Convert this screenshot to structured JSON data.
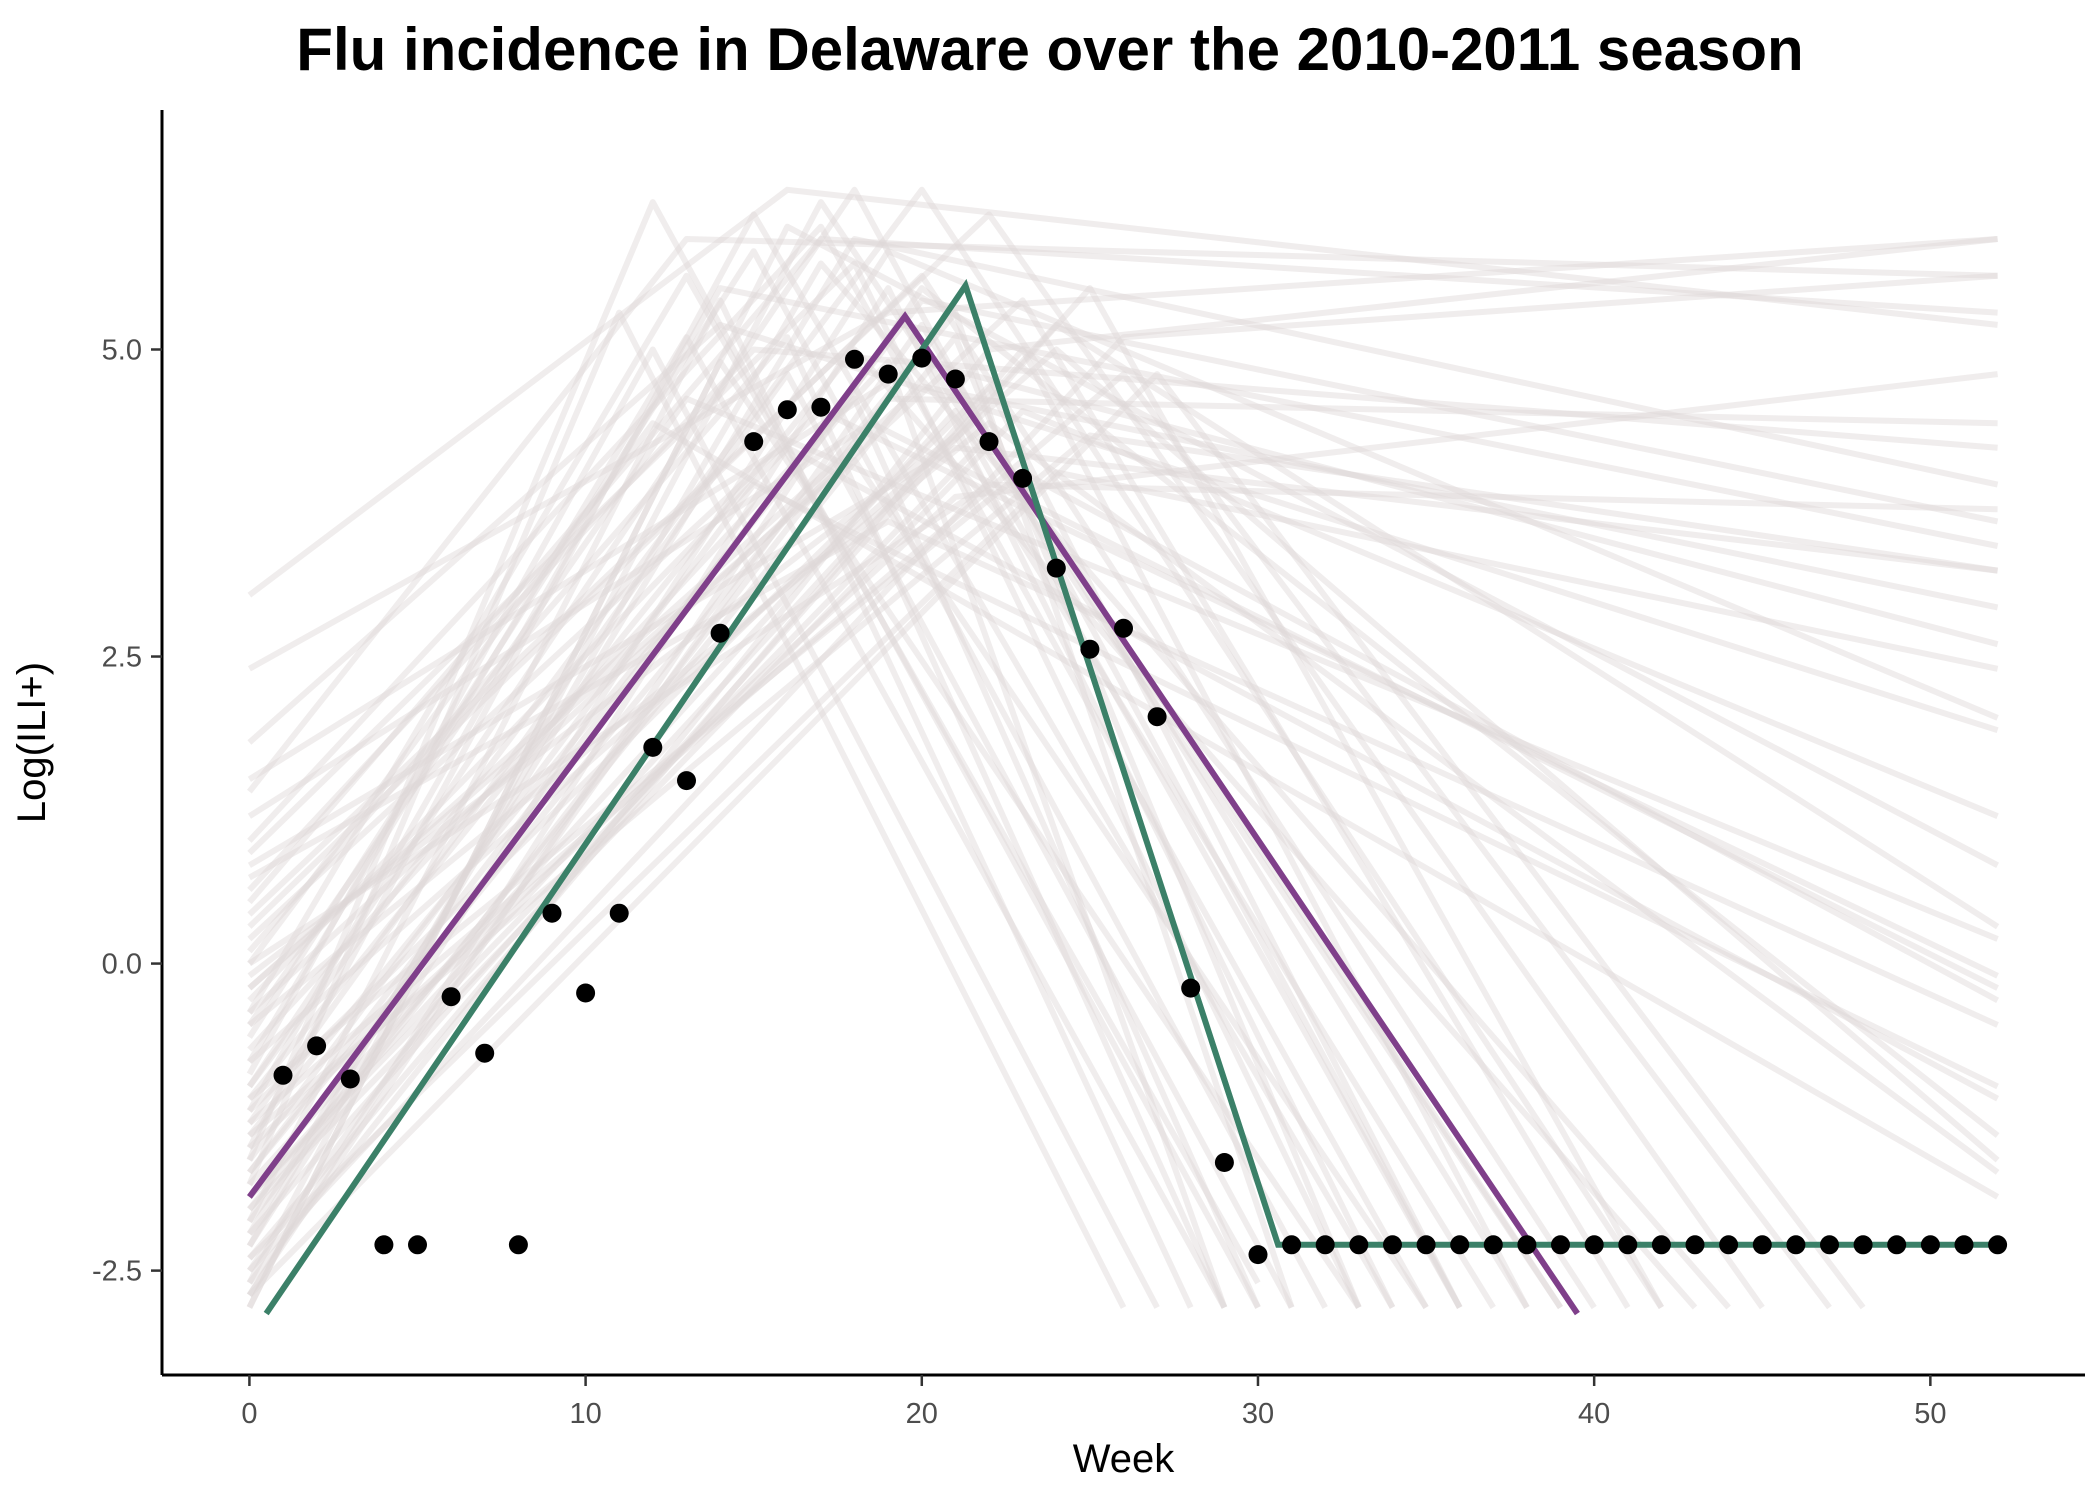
{
  "chart_data": {
    "type": "line",
    "title": "Flu incidence in Delaware over the 2010-2011 season",
    "xlabel": "Week",
    "ylabel": "Log(ILI+)",
    "xlim": [
      -2.6,
      54.6
    ],
    "ylim": [
      -3.35,
      6.95
    ],
    "x_ticks": [
      0,
      10,
      20,
      30,
      40,
      50
    ],
    "y_ticks": [
      -2.5,
      0.0,
      2.5,
      5.0
    ],
    "x_tick_labels": [
      "0",
      "10",
      "20",
      "30",
      "40",
      "50"
    ],
    "y_tick_labels": [
      "-2.5",
      "0.0",
      "2.5",
      "5.0"
    ],
    "grid": false,
    "legend": "none",
    "colors": {
      "observed_points": "#000000",
      "purple_fit": "#7f3f8a",
      "green_fit": "#3b8068",
      "posterior_samples": "#ddd6d8"
    },
    "observed_points": {
      "x": [
        1,
        2,
        3,
        4,
        5,
        6,
        7,
        8,
        9,
        10,
        11,
        12,
        13,
        14,
        15,
        16,
        17,
        18,
        19,
        20,
        21,
        22,
        23,
        24,
        25,
        26,
        27,
        28,
        29,
        30,
        31,
        32,
        33,
        34,
        35,
        36,
        37,
        38,
        39,
        40,
        41,
        42,
        43,
        44,
        45,
        46,
        47,
        48,
        49,
        50,
        51,
        52
      ],
      "y": [
        -0.91,
        -0.67,
        -0.94,
        -2.29,
        -2.29,
        -0.27,
        -0.73,
        -2.29,
        0.41,
        -0.24,
        0.41,
        1.76,
        1.49,
        2.69,
        4.25,
        4.51,
        4.53,
        4.92,
        4.8,
        4.93,
        4.76,
        4.25,
        3.95,
        3.22,
        2.56,
        2.73,
        2.01,
        -0.2,
        -1.62,
        -2.37,
        -2.29,
        -2.29,
        -2.29,
        -2.29,
        -2.29,
        -2.29,
        -2.29,
        -2.29,
        -2.29,
        -2.29,
        -2.29,
        -2.29,
        -2.29,
        -2.29,
        -2.29,
        -2.29,
        -2.29,
        -2.29,
        -2.29,
        -2.29,
        -2.29,
        -2.29
      ]
    },
    "purple_fit": {
      "x": [
        0,
        19.5,
        39.5
      ],
      "y": [
        -1.9,
        5.27,
        -2.85
      ]
    },
    "green_fit": {
      "x": [
        0.5,
        21.3,
        30.6,
        52
      ],
      "y": [
        -2.85,
        5.52,
        -2.29,
        -2.29
      ]
    },
    "posterior_samples": [
      {
        "x": [
          0,
          14,
          52
        ],
        "y": [
          -1.2,
          5.5,
          3.4
        ]
      },
      {
        "x": [
          0,
          17,
          52
        ],
        "y": [
          0.5,
          5.9,
          5.3
        ]
      },
      {
        "x": [
          0,
          13,
          30
        ],
        "y": [
          -0.4,
          5.6,
          -2.6
        ]
      },
      {
        "x": [
          0,
          21,
          33
        ],
        "y": [
          -2.0,
          5.1,
          -2.8
        ]
      },
      {
        "x": [
          0,
          18.5,
          52
        ],
        "y": [
          1.2,
          4.4,
          -0.2
        ]
      },
      {
        "x": [
          0,
          22,
          52
        ],
        "y": [
          0.0,
          3.9,
          3.7
        ]
      },
      {
        "x": [
          0,
          15,
          34
        ],
        "y": [
          -1.5,
          6.1,
          -2.8
        ]
      },
      {
        "x": [
          0,
          19,
          52
        ],
        "y": [
          2.4,
          5.3,
          5.9
        ]
      },
      {
        "x": [
          0,
          12,
          27
        ],
        "y": [
          -0.9,
          5.0,
          -2.8
        ]
      },
      {
        "x": [
          0,
          16,
          52
        ],
        "y": [
          3.0,
          6.3,
          5.2
        ]
      },
      {
        "x": [
          0,
          20,
          52
        ],
        "y": [
          -0.2,
          4.7,
          2.9
        ]
      },
      {
        "x": [
          0,
          18,
          36
        ],
        "y": [
          -1.0,
          6.3,
          -2.8
        ]
      },
      {
        "x": [
          0,
          23,
          38
        ],
        "y": [
          -2.4,
          5.0,
          -2.8
        ]
      },
      {
        "x": [
          0,
          21,
          52
        ],
        "y": [
          0.8,
          4.2,
          3.2
        ]
      },
      {
        "x": [
          0,
          14,
          52
        ],
        "y": [
          1.8,
          5.2,
          1.9
        ]
      },
      {
        "x": [
          0,
          19,
          29
        ],
        "y": [
          -0.7,
          4.9,
          -2.8
        ]
      },
      {
        "x": [
          0,
          17,
          52
        ],
        "y": [
          0.2,
          4.5,
          -0.1
        ]
      },
      {
        "x": [
          0,
          25,
          42
        ],
        "y": [
          -2.2,
          5.5,
          -2.8
        ]
      },
      {
        "x": [
          0,
          13,
          52
        ],
        "y": [
          1.4,
          5.9,
          5.6
        ]
      },
      {
        "x": [
          0,
          20,
          52
        ],
        "y": [
          -1.7,
          5.4,
          3.6
        ]
      },
      {
        "x": [
          0,
          16,
          31
        ],
        "y": [
          -1.3,
          4.8,
          -2.8
        ]
      },
      {
        "x": [
          0,
          22,
          52
        ],
        "y": [
          -0.5,
          4.4,
          -1.7
        ]
      },
      {
        "x": [
          0,
          18,
          33
        ],
        "y": [
          0.9,
          5.7,
          -2.8
        ]
      },
      {
        "x": [
          0,
          24,
          52
        ],
        "y": [
          -1.9,
          5.2,
          0.3
        ]
      },
      {
        "x": [
          0,
          15,
          52
        ],
        "y": [
          0.6,
          5.0,
          4.2
        ]
      },
      {
        "x": [
          0,
          12,
          30
        ],
        "y": [
          -1.6,
          6.2,
          -2.8
        ]
      },
      {
        "x": [
          0,
          21,
          37
        ],
        "y": [
          -0.1,
          4.3,
          -2.8
        ]
      },
      {
        "x": [
          0,
          19,
          52
        ],
        "y": [
          -2.3,
          5.8,
          2.0
        ]
      },
      {
        "x": [
          0,
          17,
          35
        ],
        "y": [
          1.0,
          6.0,
          -2.8
        ]
      },
      {
        "x": [
          0,
          23,
          52
        ],
        "y": [
          -1.1,
          4.0,
          -0.3
        ]
      },
      {
        "x": [
          0,
          14,
          28
        ],
        "y": [
          -2.1,
          5.4,
          -2.8
        ]
      },
      {
        "x": [
          0,
          20,
          40
        ],
        "y": [
          0.3,
          5.6,
          -2.8
        ]
      },
      {
        "x": [
          0,
          26,
          52
        ],
        "y": [
          -2.5,
          5.1,
          5.6
        ]
      },
      {
        "x": [
          0,
          16,
          52
        ],
        "y": [
          -0.3,
          4.2,
          -1.1
        ]
      },
      {
        "x": [
          0,
          18,
          30
        ],
        "y": [
          -1.4,
          4.6,
          -2.8
        ]
      },
      {
        "x": [
          0,
          22,
          45
        ],
        "y": [
          0.4,
          6.1,
          -2.8
        ]
      },
      {
        "x": [
          0,
          11,
          26
        ],
        "y": [
          -1.8,
          5.3,
          -2.8
        ]
      },
      {
        "x": [
          0,
          20,
          52
        ],
        "y": [
          1.5,
          4.9,
          2.6
        ]
      },
      {
        "x": [
          0,
          15,
          32
        ],
        "y": [
          -0.6,
          5.8,
          -2.8
        ]
      },
      {
        "x": [
          0,
          21,
          52
        ],
        "y": [
          -1.5,
          3.8,
          4.8
        ]
      },
      {
        "x": [
          0,
          17,
          39
        ],
        "y": [
          -2.6,
          6.2,
          -2.8
        ]
      },
      {
        "x": [
          0,
          24,
          52
        ],
        "y": [
          -0.8,
          5.0,
          -1.6
        ]
      },
      {
        "x": [
          0,
          19,
          34
        ],
        "y": [
          -2.7,
          5.5,
          -2.8
        ]
      },
      {
        "x": [
          0,
          13,
          52
        ],
        "y": [
          -0.5,
          4.6,
          0.2
        ]
      },
      {
        "x": [
          0,
          22,
          36
        ],
        "y": [
          -1.2,
          4.7,
          -2.8
        ]
      },
      {
        "x": [
          0,
          18,
          52
        ],
        "y": [
          -2.2,
          5.9,
          3.9
        ]
      },
      {
        "x": [
          0,
          27,
          48
        ],
        "y": [
          -2.7,
          4.8,
          -2.8
        ]
      },
      {
        "x": [
          0,
          16,
          29
        ],
        "y": [
          0.1,
          5.1,
          -2.8
        ]
      },
      {
        "x": [
          0,
          20,
          42
        ],
        "y": [
          -1.0,
          6.3,
          -2.8
        ]
      },
      {
        "x": [
          0,
          23,
          52
        ],
        "y": [
          -2.0,
          4.5,
          1.2
        ]
      },
      {
        "x": [
          0,
          14,
          33
        ],
        "y": [
          -2.8,
          4.9,
          -2.8
        ]
      },
      {
        "x": [
          0,
          19,
          52
        ],
        "y": [
          0.7,
          3.6,
          -0.5
        ]
      },
      {
        "x": [
          0,
          21,
          31
        ],
        "y": [
          -1.7,
          5.3,
          -2.8
        ]
      },
      {
        "x": [
          0,
          25,
          52
        ],
        "y": [
          -1.4,
          4.3,
          3.2
        ]
      },
      {
        "x": [
          0,
          17,
          44
        ],
        "y": [
          -2.3,
          5.7,
          -2.8
        ]
      },
      {
        "x": [
          0,
          12,
          52
        ],
        "y": [
          0.0,
          4.4,
          -1.9
        ]
      },
      {
        "x": [
          0,
          22,
          52
        ],
        "y": [
          -2.6,
          5.0,
          5.9
        ]
      },
      {
        "x": [
          0,
          18,
          35
        ],
        "y": [
          -0.2,
          4.1,
          -2.8
        ]
      },
      {
        "x": [
          0,
          20,
          38
        ],
        "y": [
          -2.5,
          5.2,
          -2.8
        ]
      },
      {
        "x": [
          0,
          15,
          52
        ],
        "y": [
          -1.6,
          3.9,
          -1.0
        ]
      },
      {
        "x": [
          0,
          23,
          41
        ],
        "y": [
          -0.4,
          5.4,
          -2.8
        ]
      },
      {
        "x": [
          0,
          19,
          52
        ],
        "y": [
          -2.1,
          4.6,
          4.4
        ]
      },
      {
        "x": [
          0,
          26,
          47
        ],
        "y": [
          -1.3,
          4.8,
          -2.8
        ]
      },
      {
        "x": [
          0,
          16,
          52
        ],
        "y": [
          -2.8,
          6.0,
          0.8
        ]
      },
      {
        "x": [
          0,
          21,
          36
        ],
        "y": [
          -1.8,
          4.5,
          -2.8
        ]
      },
      {
        "x": [
          0,
          13,
          29
        ],
        "y": [
          -0.8,
          5.1,
          -2.8
        ]
      },
      {
        "x": [
          0,
          24,
          52
        ],
        "y": [
          -2.4,
          4.0,
          2.4
        ]
      },
      {
        "x": [
          0,
          18,
          43
        ],
        "y": [
          -1.1,
          5.0,
          -2.8
        ]
      },
      {
        "x": [
          0,
          20,
          52
        ],
        "y": [
          -2.7,
          5.5,
          -1.4
        ]
      },
      {
        "x": [
          0,
          22,
          39
        ],
        "y": [
          -1.9,
          4.3,
          -2.8
        ]
      }
    ]
  }
}
